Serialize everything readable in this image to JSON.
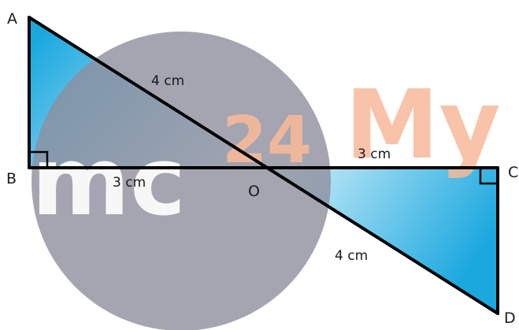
{
  "points": {
    "a": "A",
    "b": "B",
    "c": "C",
    "d": "D",
    "o": "O"
  },
  "lengths": {
    "ao": "4 cm",
    "bo": "3 cm",
    "oc": "3 cm",
    "od": "4 cm"
  },
  "watermark": {
    "part1": "mc",
    "part2": "24",
    "part3": "My"
  },
  "colors": {
    "fill_light": "#dff4fb",
    "fill_dark": "#1ba8df",
    "stroke": "#000000",
    "watermark_circle": "#8f8e9e",
    "watermark_orange": "#f7b999"
  }
}
